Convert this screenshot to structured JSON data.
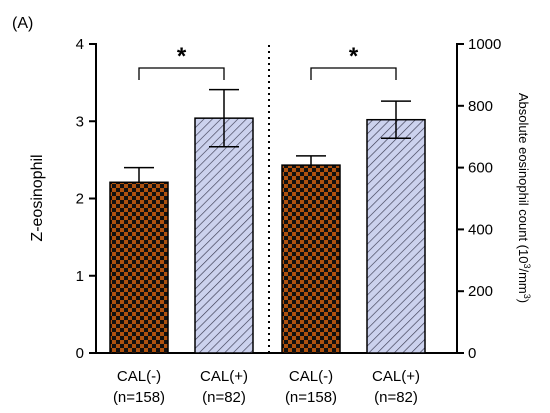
{
  "chart_data": {
    "type": "bar",
    "panel_label": "(A)",
    "left_axis": {
      "label": "Z-eosinophil",
      "ylim": [
        0,
        4
      ],
      "ticks": [
        "0",
        "1",
        "2",
        "3",
        "4"
      ]
    },
    "right_axis": {
      "label_main": "Absolute eosinophil count (10",
      "label_sup1": "3",
      "label_mid": "/mm",
      "label_sup2": "3",
      "label_end": ")",
      "ylim": [
        0,
        1000
      ],
      "ticks": [
        "0",
        "200",
        "400",
        "600",
        "800",
        "1000"
      ]
    },
    "categories": [
      {
        "name": "CAL(-)",
        "n": "(n=158)"
      },
      {
        "name": "CAL(+)",
        "n": "(n=82)"
      },
      {
        "name": "CAL(-)",
        "n": "(n=158)"
      },
      {
        "name": "CAL(+)",
        "n": "(n=82)"
      }
    ],
    "bars": [
      {
        "axis": "left",
        "value": 2.21,
        "err_low": 0,
        "err_high": 0.19,
        "pattern": "checker"
      },
      {
        "axis": "left",
        "value": 3.04,
        "err_low": 0.37,
        "err_high": 0.37,
        "pattern": "hatch"
      },
      {
        "axis": "right",
        "value": 608,
        "err_low": 0,
        "err_high": 30,
        "pattern": "checker"
      },
      {
        "axis": "right",
        "value": 755,
        "err_low": 60,
        "err_high": 60,
        "pattern": "hatch"
      }
    ],
    "significance": [
      {
        "from": 0,
        "to": 1,
        "label": "*"
      },
      {
        "from": 2,
        "to": 3,
        "label": "*"
      }
    ],
    "colors": {
      "checker_a": "#b0520f",
      "checker_b": "#111111",
      "hatch_bg": "#ccd2ee",
      "hatch_line": "#3a3a50"
    }
  }
}
